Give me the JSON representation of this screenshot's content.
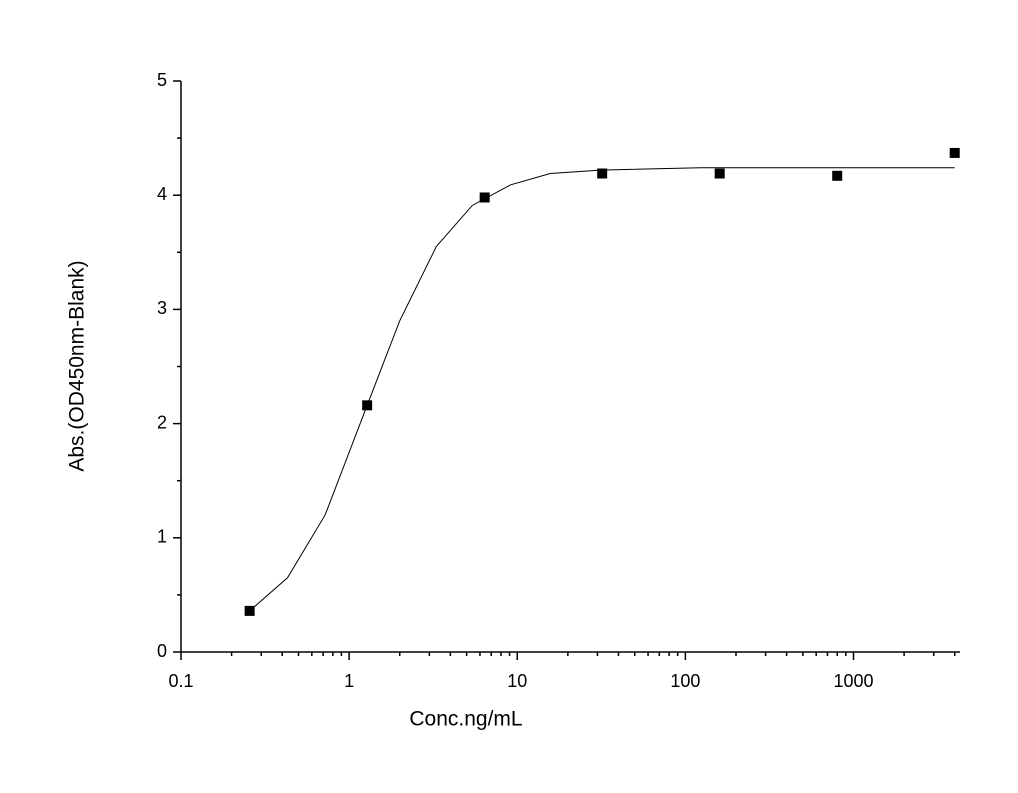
{
  "chart_data": {
    "type": "scatter",
    "x_label": "Conc.ng/mL",
    "y_label": "Abs.(OD450nm-Blank)",
    "x_log": true,
    "color": "#000000",
    "x": [
      0.256,
      1.28,
      6.4,
      32,
      160,
      800,
      4000
    ],
    "values": [
      0.36,
      2.16,
      3.98,
      4.19,
      4.19,
      4.17,
      4.37
    ],
    "fit": {
      "x": [
        0.256,
        0.43,
        0.72,
        1.28,
        2.0,
        3.3,
        5.4,
        9.1,
        15.7,
        31.2,
        123,
        800,
        4000
      ],
      "values": [
        0.36,
        0.65,
        1.2,
        2.16,
        2.9,
        3.55,
        3.91,
        4.09,
        4.19,
        4.22,
        4.24,
        4.24,
        4.24
      ]
    },
    "xlim": [
      0.1,
      4300
    ],
    "ylim": [
      0,
      5
    ],
    "xticks": [
      0.1,
      1,
      10,
      100,
      1000
    ],
    "yticks": [
      0,
      1,
      2,
      3,
      4,
      5
    ]
  }
}
